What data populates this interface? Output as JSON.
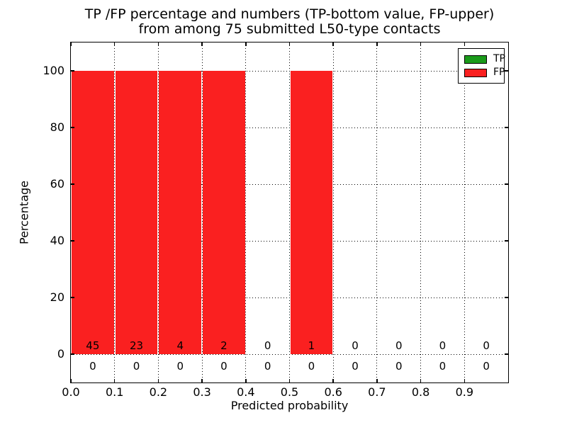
{
  "figure": {
    "title_line1": "TP /FP percentage and numbers (TP-bottom value, FP-upper)",
    "title_line2": "from among 75 submitted L50-type contacts"
  },
  "legend": {
    "position": "upper right",
    "items": [
      {
        "label": "TP",
        "color": "#1a9a1a"
      },
      {
        "label": "FP",
        "color": "#fa2020"
      }
    ]
  },
  "chart_data": {
    "type": "bar",
    "title": "TP /FP percentage and numbers (TP-bottom value, FP-upper)\nfrom among 75 submitted L50-type contacts",
    "xlabel": "Predicted probability",
    "ylabel": "Percentage",
    "xlim": [
      0.0,
      1.0
    ],
    "ylim": [
      -10,
      110
    ],
    "x_ticks": [
      "0.0",
      "0.1",
      "0.2",
      "0.3",
      "0.4",
      "0.5",
      "0.6",
      "0.7",
      "0.8",
      "0.9"
    ],
    "y_ticks": [
      0,
      20,
      40,
      60,
      80,
      100
    ],
    "grid": true,
    "grid_style": "dotted",
    "legend_position": "upper right",
    "bin_width": 0.1,
    "bin_starts": [
      0.0,
      0.1,
      0.2,
      0.3,
      0.4,
      0.5,
      0.6,
      0.7,
      0.8,
      0.9
    ],
    "series": [
      {
        "name": "TP",
        "role": "bottom-value",
        "color": "#1a9a1a",
        "percentages": [
          0,
          0,
          0,
          0,
          0,
          0,
          0,
          0,
          0,
          0
        ],
        "counts": [
          0,
          0,
          0,
          0,
          0,
          0,
          0,
          0,
          0,
          0
        ]
      },
      {
        "name": "FP",
        "role": "upper-value",
        "color": "#fa2020",
        "percentages": [
          100,
          100,
          100,
          100,
          0,
          100,
          0,
          0,
          0,
          0
        ],
        "counts": [
          45,
          23,
          4,
          2,
          0,
          1,
          0,
          0,
          0,
          0
        ]
      }
    ]
  }
}
